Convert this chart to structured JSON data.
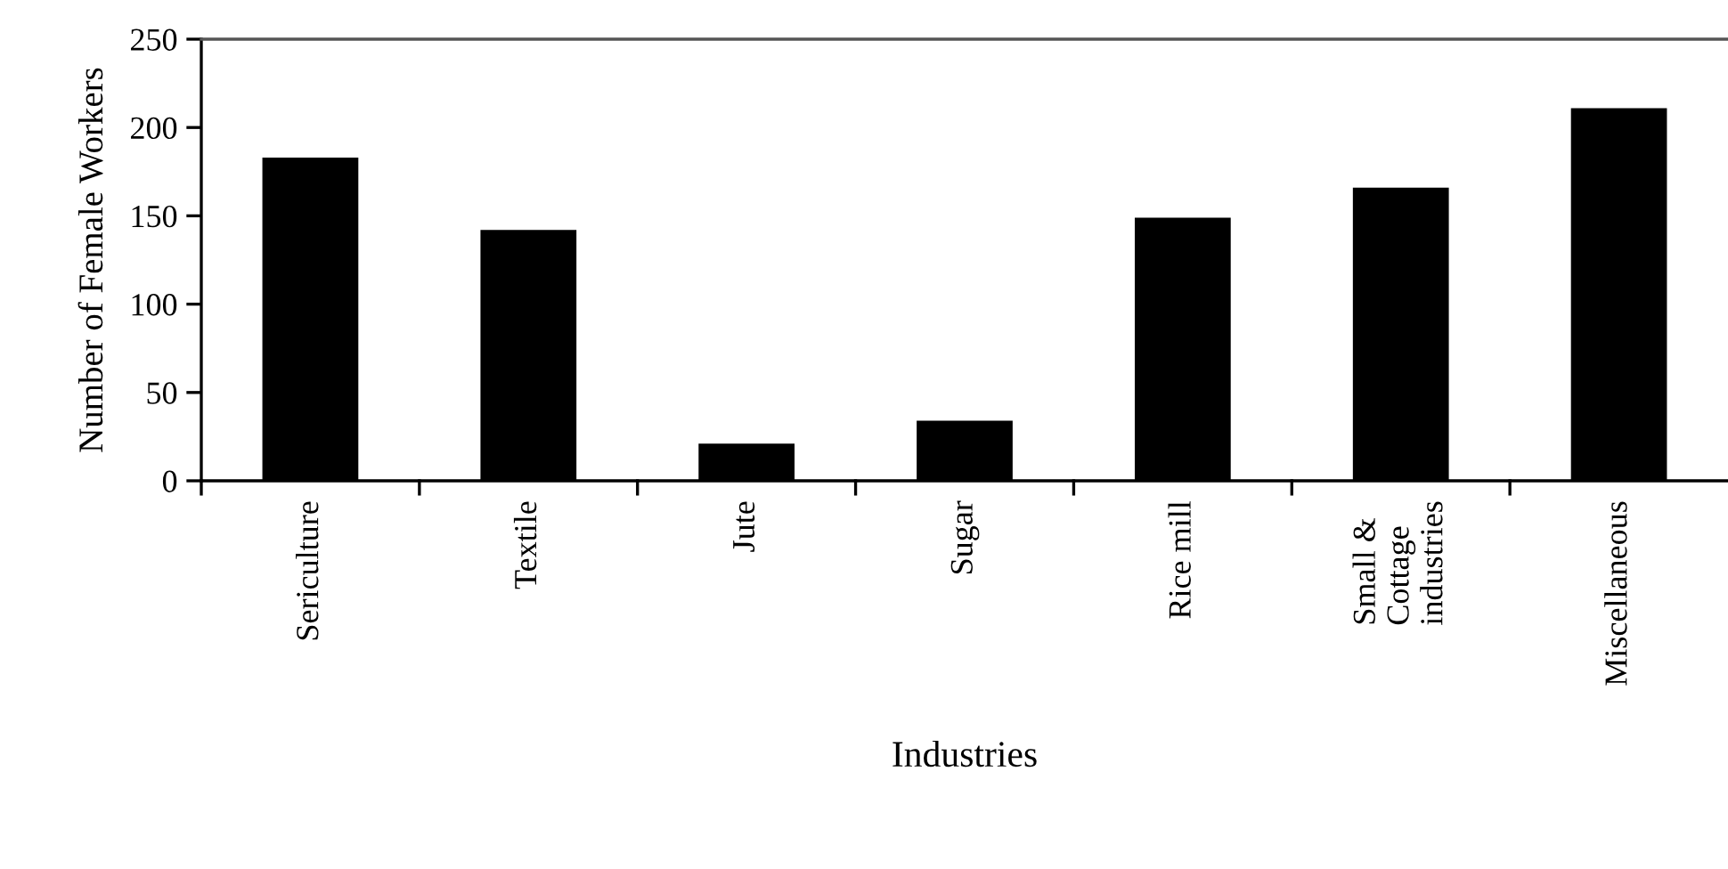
{
  "chart_data": {
    "type": "bar",
    "xlabel": "Industries",
    "ylabel": "Number of Female Workers",
    "categories": [
      "Sericulture",
      "Textile",
      "Jute",
      "Sugar",
      "Rice mill",
      "Small &\nCottage\nindustries",
      "Miscellaneous"
    ],
    "values": [
      183,
      142,
      21,
      34,
      149,
      166,
      211
    ],
    "color": "#000000",
    "ylim": [
      0,
      250
    ],
    "yticks": [
      0,
      50,
      100,
      150,
      200,
      250
    ],
    "grid": false
  }
}
